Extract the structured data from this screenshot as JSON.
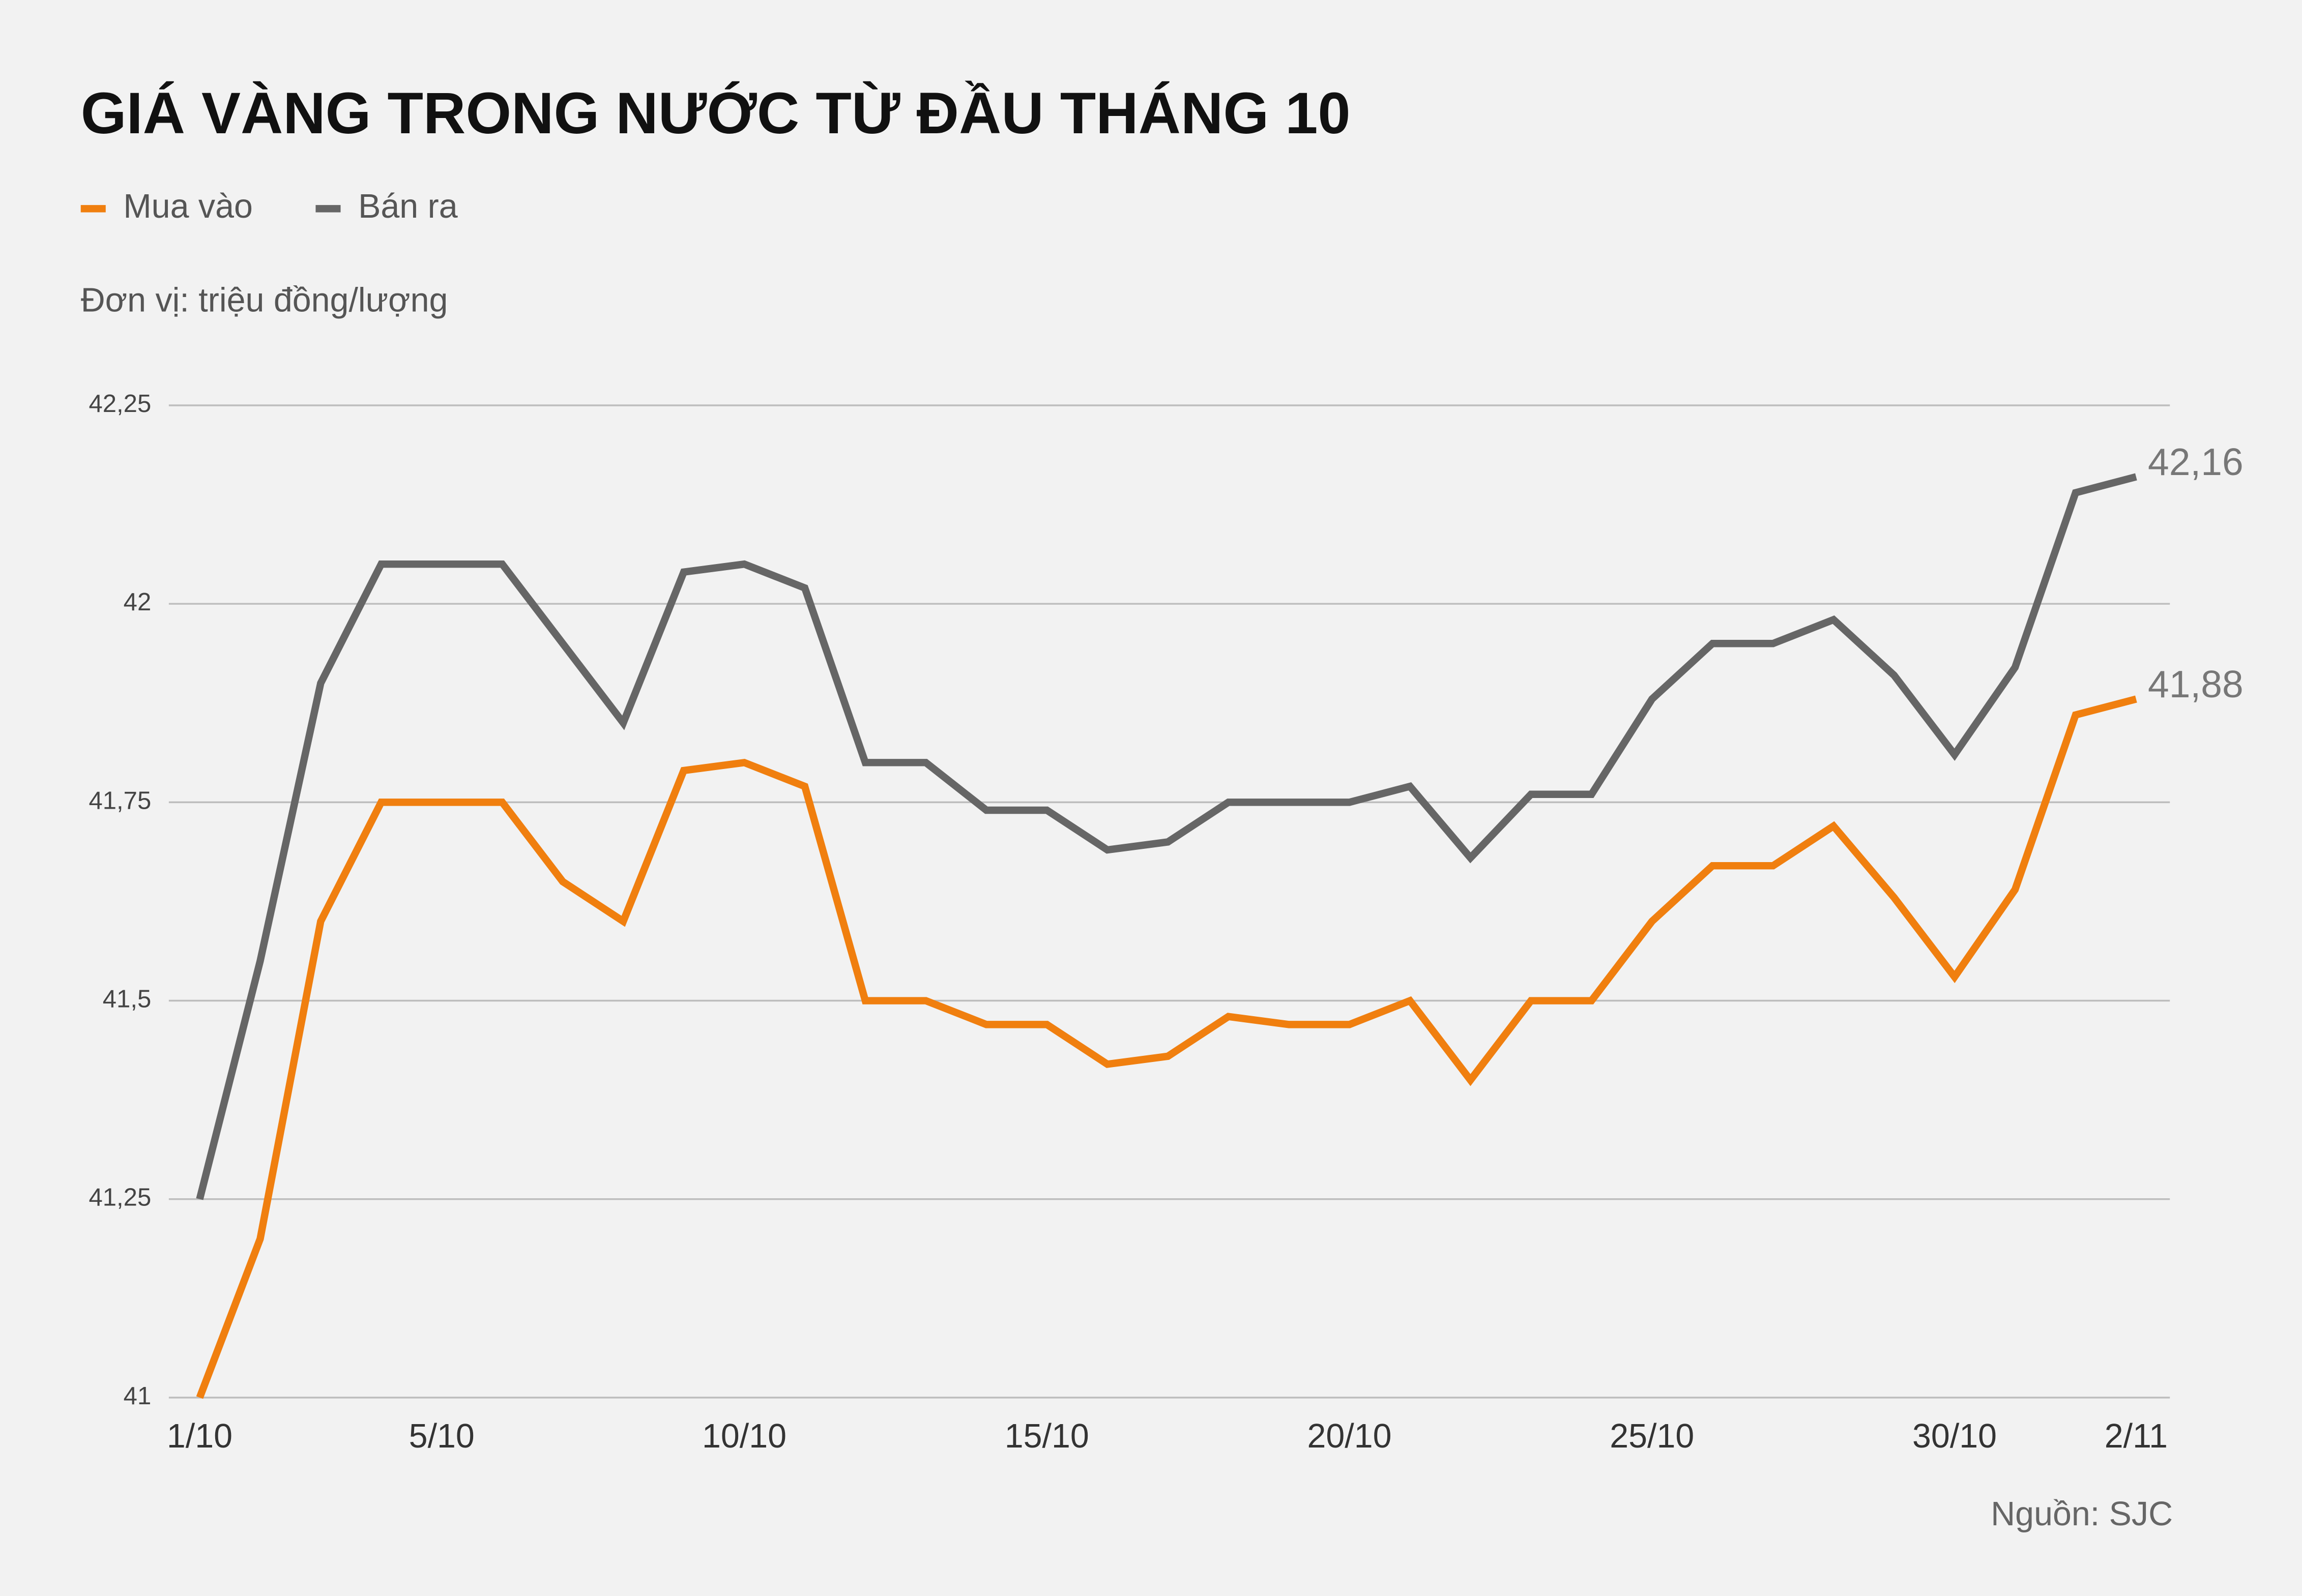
{
  "chart_data": {
    "type": "line",
    "title": "GIÁ VÀNG TRONG NƯỚC TỪ ĐẦU THÁNG 10",
    "subtitle": "Đơn vị: triệu đồng/lượng",
    "source": "Nguồn: SJC",
    "categories": [
      "1/10",
      null,
      null,
      null,
      "5/10",
      null,
      null,
      null,
      null,
      "10/10",
      null,
      null,
      null,
      null,
      "15/10",
      null,
      null,
      null,
      null,
      "20/10",
      null,
      null,
      null,
      null,
      "25/10",
      null,
      null,
      null,
      null,
      "30/10",
      null,
      null,
      "2/11"
    ],
    "series": [
      {
        "name": "Mua vào",
        "color": "#f07f0f",
        "values": [
          41.0,
          41.2,
          41.6,
          41.75,
          41.75,
          41.75,
          41.65,
          41.6,
          41.79,
          41.8,
          41.77,
          41.5,
          41.5,
          41.47,
          41.47,
          41.42,
          41.43,
          41.48,
          41.47,
          41.47,
          41.5,
          41.4,
          41.5,
          41.5,
          41.6,
          41.67,
          41.67,
          41.72,
          41.63,
          41.53,
          41.64,
          41.86,
          41.88
        ],
        "value_labels": [
          null,
          null,
          null,
          null,
          null,
          null,
          null,
          null,
          null,
          null,
          null,
          null,
          null,
          null,
          null,
          null,
          null,
          null,
          null,
          null,
          null,
          null,
          null,
          null,
          null,
          null,
          null,
          null,
          null,
          null,
          null,
          null,
          "41,88"
        ]
      },
      {
        "name": "Bán ra",
        "color": "#666666",
        "values": [
          41.25,
          41.55,
          41.9,
          42.05,
          42.05,
          42.05,
          41.95,
          41.85,
          42.04,
          42.05,
          42.02,
          41.8,
          41.8,
          41.74,
          41.74,
          41.69,
          41.7,
          41.75,
          41.75,
          41.75,
          41.77,
          41.68,
          41.76,
          41.76,
          41.88,
          41.95,
          41.95,
          41.98,
          41.91,
          41.81,
          41.92,
          42.14,
          42.16
        ],
        "value_labels": [
          null,
          null,
          null,
          null,
          null,
          null,
          null,
          null,
          null,
          null,
          null,
          null,
          null,
          null,
          null,
          null,
          null,
          null,
          null,
          null,
          null,
          null,
          null,
          null,
          null,
          null,
          null,
          null,
          null,
          null,
          null,
          null,
          "42,16"
        ]
      }
    ],
    "ylim": [
      41,
      42.25
    ],
    "yticks": [
      41,
      {
        "value": 41.25,
        "label": "41,25"
      },
      {
        "value": 41.5,
        "label": "41,5"
      },
      {
        "value": 41.75,
        "label": "41,75"
      },
      42,
      {
        "value": 42.25,
        "label": "42,25"
      }
    ],
    "grid": true
  }
}
